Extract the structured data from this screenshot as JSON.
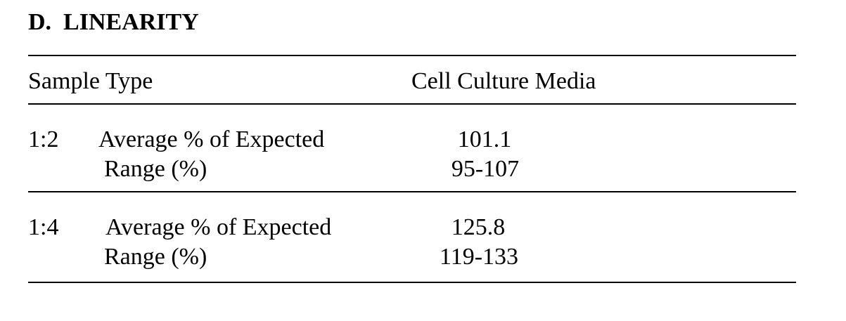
{
  "header": {
    "title": "D.  LINEARITY"
  },
  "table": {
    "columns": [
      "Sample Type",
      "Cell Culture Media"
    ],
    "rows": [
      {
        "dilution": "1:2",
        "lines": [
          [
            "Average % of Expected",
            "101.1"
          ],
          [
            "Range (%)",
            "95-107"
          ]
        ]
      },
      {
        "dilution": "1:4",
        "lines": [
          [
            "Average % of Expected",
            "125.8"
          ],
          [
            "Range (%)",
            "119-133"
          ]
        ]
      }
    ]
  }
}
